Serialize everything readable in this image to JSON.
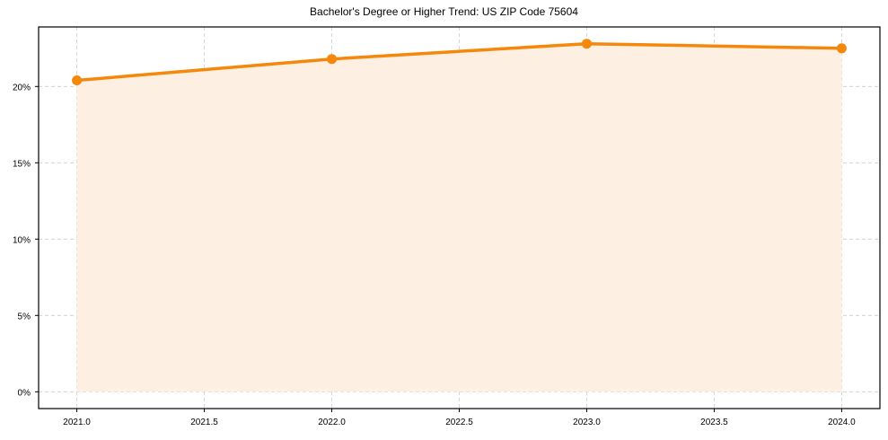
{
  "chart_data": {
    "type": "line",
    "title": "Bachelor's Degree or Higher Trend: US ZIP Code 75604",
    "xlabel": "",
    "ylabel": "",
    "x": [
      2021,
      2022,
      2023,
      2024
    ],
    "series": [
      {
        "name": "Bachelor's Degree or Higher",
        "values": [
          20.4,
          21.8,
          22.8,
          22.5
        ],
        "unit": "%"
      }
    ],
    "x_ticks": [
      "2021.0",
      "2021.5",
      "2022.0",
      "2022.5",
      "2023.0",
      "2023.5",
      "2024.0"
    ],
    "y_ticks": [
      "0%",
      "5%",
      "10%",
      "15%",
      "20%"
    ],
    "xlim": [
      2020.85,
      2024.15
    ],
    "ylim": [
      -1.1,
      23.9
    ],
    "grid": true,
    "grid_style": "dashed",
    "area_fill": true,
    "legend": "none",
    "colors": {
      "line": "#f5870a",
      "fill": "#fdf0e3",
      "grid": "#cccccc"
    }
  }
}
